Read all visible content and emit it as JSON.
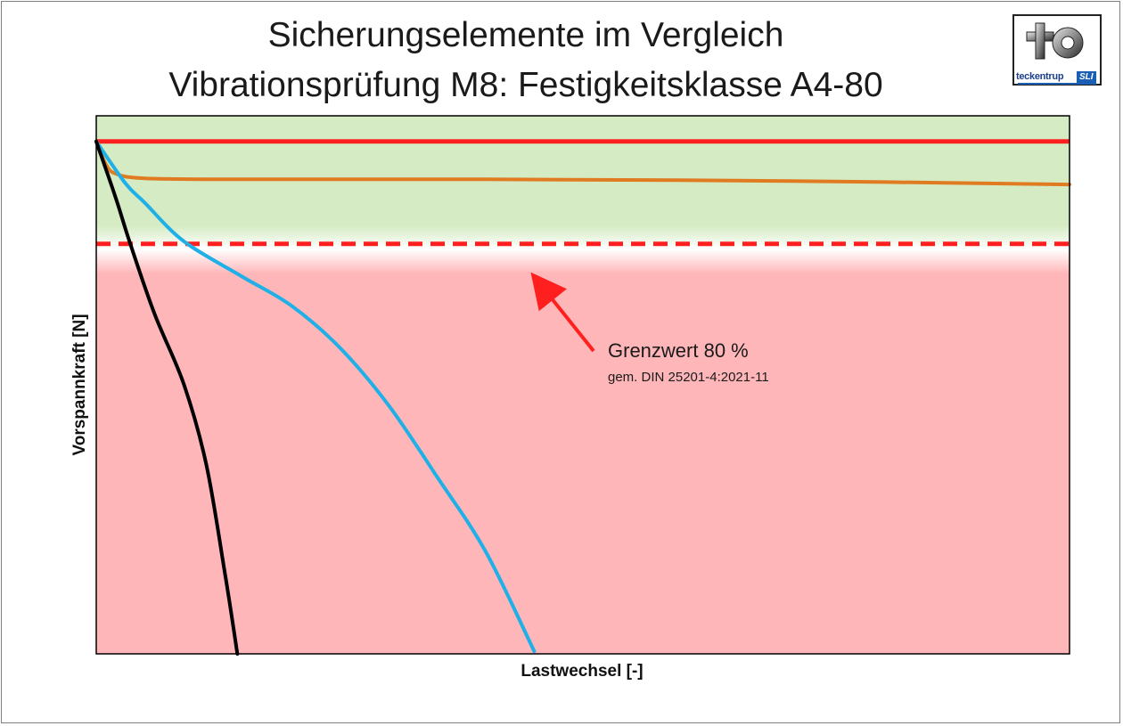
{
  "title_line1": "Sicherungselemente im Vergleich",
  "title_line2": "Vibrationsprüfung M8: Festigkeitsklasse A4-80",
  "logo": {
    "text": "teckentrup",
    "badge": "SLI"
  },
  "colors": {
    "accept_zone": "#d5ebc3",
    "reject_zone": "#ffb6b9",
    "limit_line": "#ff1f1f",
    "arrow": "#ff1f1f"
  },
  "chart_data": {
    "type": "line",
    "xlabel": "Lastwechsel [-]",
    "ylabel": "Vorspannkraft  [N]",
    "xlim": [
      0,
      100
    ],
    "ylim": [
      0,
      105
    ],
    "grid": false,
    "legend": "none",
    "zones": [
      {
        "label": "",
        "from": 80,
        "to": 105,
        "color": "#d5ebc3"
      },
      {
        "label": "",
        "from": 0,
        "to": 80,
        "color": "#ffb6b9"
      }
    ],
    "reference_lines": [
      {
        "y": 100,
        "style": "solid",
        "color": "#ff1f1f"
      },
      {
        "y": 80,
        "style": "dashed",
        "color": "#ff1f1f"
      }
    ],
    "series": [
      {
        "color": "#e07b22",
        "points": [
          [
            0,
            100
          ],
          [
            1,
            95.5
          ],
          [
            2,
            93.7
          ],
          [
            5,
            92.8
          ],
          [
            15,
            92.6
          ],
          [
            40,
            92.6
          ],
          [
            70,
            92.3
          ],
          [
            100,
            91.6
          ]
        ]
      },
      {
        "color": "#1fb0e8",
        "points": [
          [
            0,
            100
          ],
          [
            3,
            91.8
          ],
          [
            5,
            88
          ],
          [
            9,
            80.5
          ],
          [
            15,
            73.6
          ],
          [
            20,
            68
          ],
          [
            25,
            59.8
          ],
          [
            30,
            48.6
          ],
          [
            35,
            34.6
          ],
          [
            40,
            20
          ],
          [
            45,
            0.5
          ]
        ]
      },
      {
        "color": "#000000",
        "points": [
          [
            0,
            100
          ],
          [
            2,
            89
          ],
          [
            3.5,
            80
          ],
          [
            6,
            66.3
          ],
          [
            9,
            52.6
          ],
          [
            11.3,
            37
          ],
          [
            13.2,
            16
          ],
          [
            14.5,
            0
          ]
        ]
      }
    ],
    "annotations": [
      {
        "text": "Grenzwert 80 %",
        "subtext": "gem. DIN 25201-4:2021-11",
        "arrow_to": [
          45,
          73
        ]
      }
    ]
  }
}
